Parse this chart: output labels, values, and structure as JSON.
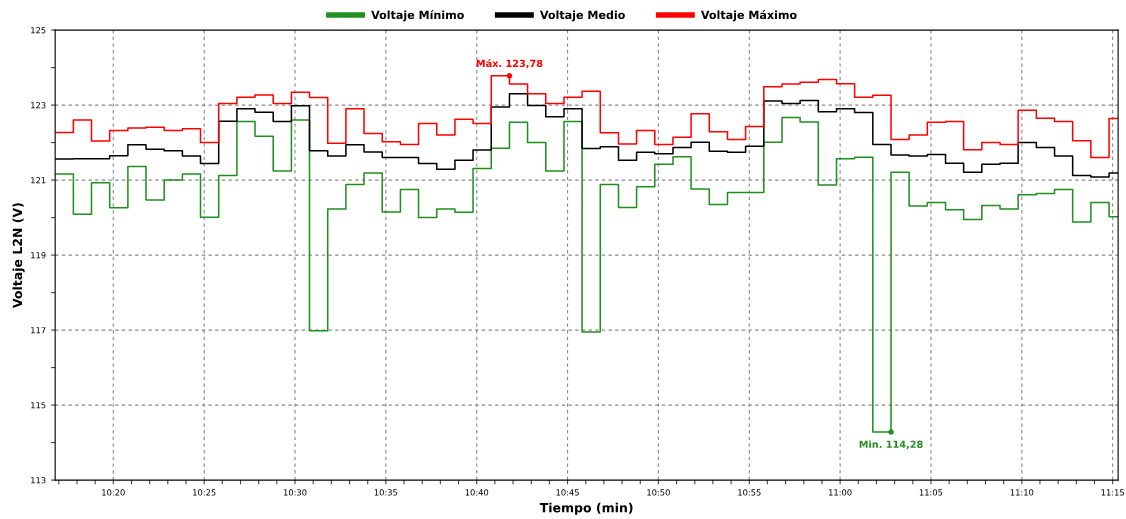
{
  "chart_data": {
    "type": "step",
    "xlabel": "Tiempo (min)",
    "ylabel": "Voltaje L2N (V)",
    "x": [
      10.28,
      10.2967,
      10.3133,
      10.33,
      10.3467,
      10.3633,
      10.38,
      10.3967,
      10.4133,
      10.43,
      10.4467,
      10.4633,
      10.48,
      10.4967,
      10.5133,
      10.53,
      10.5467,
      10.5633,
      10.58,
      10.5967,
      10.6133,
      10.63,
      10.6467,
      10.6633,
      10.68,
      10.6967,
      10.7133,
      10.73,
      10.7467,
      10.7633,
      10.78,
      10.7967,
      10.8133,
      10.83,
      10.8467,
      10.8633,
      10.88,
      10.8967,
      10.9133,
      10.93,
      10.9467,
      10.9633,
      10.98,
      10.9967,
      11.0133,
      11.03,
      11.0467,
      11.0633,
      11.08,
      11.0967,
      11.1133,
      11.13,
      11.1467,
      11.1633,
      11.18,
      11.1967,
      11.2133,
      11.23,
      11.2467,
      11.255
    ],
    "series": [
      {
        "name": "Voltaje Mínimo",
        "color": "#1f8f1f",
        "values": [
          121.16,
          120.09,
          120.93,
          120.26,
          121.36,
          120.47,
          121.0,
          121.16,
          120.01,
          121.12,
          122.56,
          122.17,
          121.24,
          122.6,
          116.98,
          120.23,
          120.88,
          121.19,
          120.15,
          120.75,
          120.0,
          120.23,
          120.14,
          121.31,
          121.85,
          122.54,
          122.0,
          121.24,
          122.56,
          116.95,
          120.88,
          120.27,
          120.82,
          121.42,
          121.62,
          120.76,
          120.35,
          120.67,
          120.67,
          122.01,
          122.67,
          122.55,
          120.87,
          121.57,
          121.61,
          114.28,
          121.21,
          120.31,
          120.4,
          120.21,
          119.95,
          120.32,
          120.23,
          120.61,
          120.64,
          120.75,
          119.88,
          120.4,
          120.02,
          120.02
        ]
      },
      {
        "name": "Voltaje Medio",
        "color": "#000000",
        "values": [
          121.56,
          121.57,
          121.57,
          121.65,
          121.94,
          121.82,
          121.78,
          121.64,
          121.44,
          122.57,
          122.9,
          122.81,
          122.56,
          122.98,
          121.78,
          121.64,
          121.94,
          121.75,
          121.6,
          121.6,
          121.44,
          121.29,
          121.53,
          121.8,
          122.95,
          123.3,
          122.99,
          122.69,
          122.9,
          121.84,
          121.89,
          121.53,
          121.74,
          121.7,
          121.87,
          122.01,
          121.77,
          121.74,
          121.9,
          123.11,
          123.04,
          123.12,
          122.82,
          122.9,
          122.8,
          121.95,
          121.67,
          121.64,
          121.68,
          121.45,
          121.21,
          121.42,
          121.45,
          122.0,
          121.87,
          121.64,
          121.12,
          121.08,
          121.19,
          121.19
        ]
      },
      {
        "name": "Voltaje Máximo",
        "color": "#ff0000",
        "values": [
          122.27,
          122.6,
          122.04,
          122.32,
          122.39,
          122.41,
          122.32,
          122.37,
          122.0,
          123.04,
          123.21,
          123.27,
          123.04,
          123.34,
          123.2,
          121.98,
          122.9,
          122.24,
          122.02,
          121.95,
          122.51,
          122.2,
          122.62,
          122.51,
          123.78,
          123.56,
          123.3,
          123.04,
          123.21,
          123.37,
          122.26,
          121.96,
          122.32,
          121.95,
          122.14,
          122.77,
          122.29,
          122.08,
          122.43,
          123.49,
          123.56,
          123.61,
          123.68,
          123.57,
          123.21,
          123.26,
          122.08,
          122.2,
          122.54,
          122.56,
          121.81,
          122.0,
          121.95,
          122.86,
          122.65,
          122.56,
          122.05,
          121.6,
          122.64,
          122.64
        ]
      }
    ],
    "annotations": [
      {
        "text": "Máx. 123,78",
        "x": 10.6967,
        "y": 123.78
      },
      {
        "text": "Min. 114,28",
        "x": 11.0467,
        "y": 114.28
      }
    ],
    "xlim": [
      10.28,
      11.255
    ],
    "ylim": [
      113,
      125
    ],
    "xticks": [
      {
        "value": 10.2833,
        "label": null
      },
      {
        "value": 10.3,
        "label": null
      },
      {
        "value": 10.3167,
        "label": null
      },
      {
        "value": 10.3333,
        "label": "10:20"
      },
      {
        "value": 10.35,
        "label": null
      },
      {
        "value": 10.3667,
        "label": null
      },
      {
        "value": 10.3833,
        "label": null
      },
      {
        "value": 10.4,
        "label": null
      },
      {
        "value": 10.4167,
        "label": "10:25"
      },
      {
        "value": 10.4333,
        "label": null
      },
      {
        "value": 10.45,
        "label": null
      },
      {
        "value": 10.4667,
        "label": null
      },
      {
        "value": 10.4833,
        "label": null
      },
      {
        "value": 10.5,
        "label": "10:30"
      },
      {
        "value": 10.5167,
        "label": null
      },
      {
        "value": 10.5333,
        "label": null
      },
      {
        "value": 10.55,
        "label": null
      },
      {
        "value": 10.5667,
        "label": null
      },
      {
        "value": 10.5833,
        "label": "10:35"
      },
      {
        "value": 10.6,
        "label": null
      },
      {
        "value": 10.6167,
        "label": null
      },
      {
        "value": 10.6333,
        "label": null
      },
      {
        "value": 10.65,
        "label": null
      },
      {
        "value": 10.6667,
        "label": "10:40"
      },
      {
        "value": 10.6833,
        "label": null
      },
      {
        "value": 10.7,
        "label": null
      },
      {
        "value": 10.7167,
        "label": null
      },
      {
        "value": 10.7333,
        "label": null
      },
      {
        "value": 10.75,
        "label": "10:45"
      },
      {
        "value": 10.7667,
        "label": null
      },
      {
        "value": 10.7833,
        "label": null
      },
      {
        "value": 10.8,
        "label": null
      },
      {
        "value": 10.8167,
        "label": null
      },
      {
        "value": 10.8333,
        "label": "10:50"
      },
      {
        "value": 10.85,
        "label": null
      },
      {
        "value": 10.8667,
        "label": null
      },
      {
        "value": 10.8833,
        "label": null
      },
      {
        "value": 10.9,
        "label": null
      },
      {
        "value": 10.9167,
        "label": "10:55"
      },
      {
        "value": 10.9333,
        "label": null
      },
      {
        "value": 10.95,
        "label": null
      },
      {
        "value": 10.9667,
        "label": null
      },
      {
        "value": 10.9833,
        "label": null
      },
      {
        "value": 11.0,
        "label": "11:00"
      },
      {
        "value": 11.0167,
        "label": null
      },
      {
        "value": 11.0333,
        "label": null
      },
      {
        "value": 11.05,
        "label": null
      },
      {
        "value": 11.0667,
        "label": null
      },
      {
        "value": 11.0833,
        "label": "11:05"
      },
      {
        "value": 11.1,
        "label": null
      },
      {
        "value": 11.1167,
        "label": null
      },
      {
        "value": 11.1333,
        "label": null
      },
      {
        "value": 11.15,
        "label": null
      },
      {
        "value": 11.1667,
        "label": "11:10"
      },
      {
        "value": 11.1833,
        "label": null
      },
      {
        "value": 11.2,
        "label": null
      },
      {
        "value": 11.2167,
        "label": null
      },
      {
        "value": 11.2333,
        "label": null
      },
      {
        "value": 11.25,
        "label": "11:15"
      }
    ],
    "yticks": [
      113,
      {
        "value": 114,
        "label": null
      },
      115,
      {
        "value": 116,
        "label": null
      },
      117,
      {
        "value": 118,
        "label": null
      },
      119,
      {
        "value": 120,
        "label": null
      },
      121,
      {
        "value": 122,
        "label": null
      },
      123,
      {
        "value": 124,
        "label": null
      },
      125
    ],
    "grid": true,
    "legend": "top",
    "line_style": "solid",
    "marker": "none"
  }
}
